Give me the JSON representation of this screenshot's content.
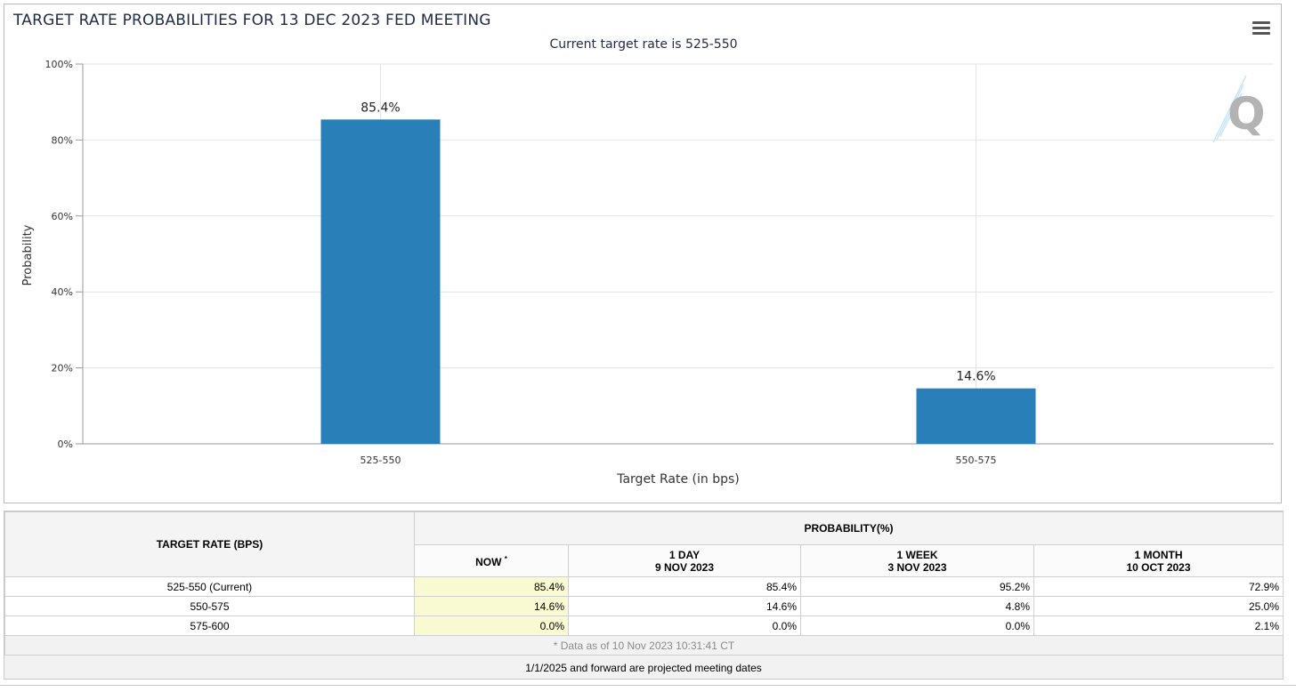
{
  "chart_data": {
    "type": "bar",
    "title": "TARGET RATE PROBABILITIES FOR 13 DEC 2023 FED MEETING",
    "subtitle": "Current target rate is 525-550",
    "xlabel": "Target Rate (in bps)",
    "ylabel": "Probability",
    "categories": [
      "525-550",
      "550-575"
    ],
    "values": [
      85.4,
      14.6
    ],
    "data_labels": [
      "85.4%",
      "14.6%"
    ],
    "ylim": [
      0,
      100
    ],
    "yticks": [
      0,
      20,
      40,
      60,
      80,
      100
    ],
    "ytick_labels": [
      "0%",
      "20%",
      "40%",
      "60%",
      "80%",
      "100%"
    ],
    "bar_color": "#2980b9",
    "grid": true
  },
  "table": {
    "rate_header": "TARGET RATE (BPS)",
    "prob_header": "PROBABILITY(%)",
    "columns": [
      {
        "line1": "NOW",
        "line2": "",
        "marker": "*"
      },
      {
        "line1": "1 DAY",
        "line2": "9 NOV 2023",
        "marker": ""
      },
      {
        "line1": "1 WEEK",
        "line2": "3 NOV 2023",
        "marker": ""
      },
      {
        "line1": "1 MONTH",
        "line2": "10 OCT 2023",
        "marker": ""
      }
    ],
    "rows": [
      {
        "rate": "525-550 (Current)",
        "values": [
          "85.4%",
          "85.4%",
          "95.2%",
          "72.9%"
        ]
      },
      {
        "rate": "550-575",
        "values": [
          "14.6%",
          "14.6%",
          "4.8%",
          "25.0%"
        ]
      },
      {
        "rate": "575-600",
        "values": [
          "0.0%",
          "0.0%",
          "0.0%",
          "2.1%"
        ]
      }
    ],
    "data_note": "* Data as of 10 Nov 2023 10:31:41 CT"
  },
  "footer_note": "1/1/2025 and forward are projected meeting dates",
  "watermark_letter": "Q",
  "colors": {
    "now_cell_bg": "#fafad2",
    "title_color": "#1f2a44"
  }
}
